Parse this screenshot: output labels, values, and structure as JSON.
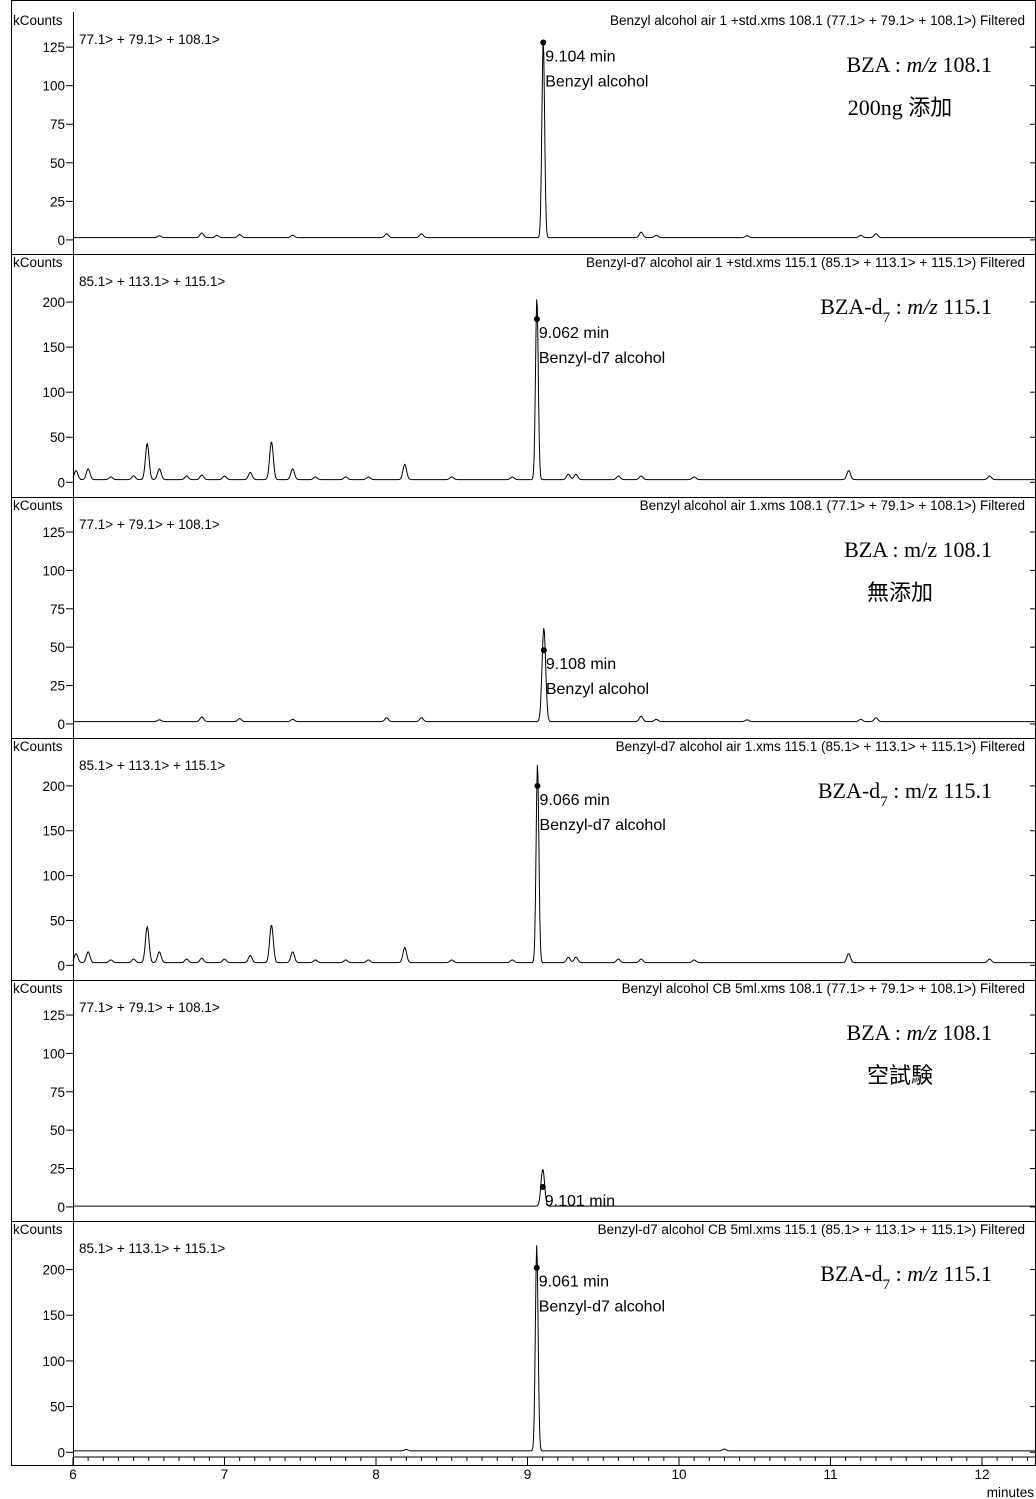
{
  "chart_data": {
    "type": "line",
    "x_unit_label": "minutes",
    "x_ticks": [
      6,
      7,
      8,
      9,
      10,
      11,
      12
    ],
    "xlim": [
      6.0,
      12.35
    ],
    "y_unit_label": "kCounts",
    "line_color": "#000000",
    "panels": [
      {
        "header": "Benzyl alcohol air 1 +std.xms 108.1 (77.1> + 79.1> + 108.1>) Filtered",
        "ions": "77.1> + 79.1> + 108.1>",
        "y_ticks": [
          0,
          25,
          50,
          75,
          100,
          125
        ],
        "ylim": [
          -2,
          140
        ],
        "baseline": 1.5,
        "peaks": [
          [
            6.57,
            1.2
          ],
          [
            6.85,
            3
          ],
          [
            6.95,
            1.5
          ],
          [
            7.1,
            2
          ],
          [
            7.45,
            1.5
          ],
          [
            8.07,
            2.5
          ],
          [
            8.3,
            2.5
          ],
          [
            9.104,
            128
          ],
          [
            9.75,
            3.5
          ],
          [
            9.85,
            1.5
          ],
          [
            10.45,
            1.2
          ],
          [
            11.2,
            1.5
          ],
          [
            11.3,
            2.5
          ]
        ],
        "marker": {
          "rt": 9.104,
          "height": 128
        },
        "peak_labels": [
          "9.104 min",
          "Benzyl alcohol"
        ],
        "annotation": {
          "compound": "BZA",
          "subscript": "",
          "sep": " : ",
          "mz_prefix": "m/z",
          "mz_italic": true,
          "mz_value": " 108.1",
          "note": "200ng 添加"
        }
      },
      {
        "header": "Benzyl-d7 alcohol air 1 +std.xms 115.1 (85.1> + 113.1> + 115.1>) Filtered",
        "ions": "85.1> + 113.1> + 115.1>",
        "y_ticks": [
          0,
          50,
          100,
          150,
          200
        ],
        "ylim": [
          -3,
          240
        ],
        "baseline": 3,
        "peaks": [
          [
            6.02,
            10
          ],
          [
            6.1,
            12
          ],
          [
            6.25,
            3
          ],
          [
            6.4,
            4
          ],
          [
            6.49,
            40
          ],
          [
            6.57,
            12
          ],
          [
            6.75,
            4
          ],
          [
            6.85,
            5
          ],
          [
            7.0,
            4
          ],
          [
            7.17,
            8
          ],
          [
            7.31,
            42
          ],
          [
            7.45,
            12
          ],
          [
            7.6,
            3
          ],
          [
            7.8,
            3
          ],
          [
            7.95,
            3
          ],
          [
            8.19,
            17
          ],
          [
            8.5,
            3
          ],
          [
            8.9,
            3
          ],
          [
            9.062,
            202
          ],
          [
            9.27,
            6
          ],
          [
            9.32,
            6
          ],
          [
            9.6,
            4
          ],
          [
            9.75,
            4
          ],
          [
            10.1,
            3
          ],
          [
            11.12,
            10
          ],
          [
            12.05,
            4
          ]
        ],
        "marker": {
          "rt": 9.062,
          "height": 181
        },
        "peak_labels": [
          "9.062 min",
          "Benzyl-d7 alcohol"
        ],
        "annotation": {
          "compound": "BZA-d",
          "subscript": "7",
          "sep": " : ",
          "mz_prefix": "m/z",
          "mz_italic": true,
          "mz_value": " 115.1",
          "note": ""
        }
      },
      {
        "header": "Benzyl alcohol air 1.xms 108.1 (77.1> + 79.1> + 108.1>) Filtered",
        "ions": "77.1> + 79.1> + 108.1>",
        "y_ticks": [
          0,
          25,
          50,
          75,
          100,
          125
        ],
        "ylim": [
          -2,
          140
        ],
        "baseline": 1.5,
        "peaks": [
          [
            6.57,
            1.2
          ],
          [
            6.85,
            3
          ],
          [
            7.1,
            2
          ],
          [
            7.45,
            1.5
          ],
          [
            8.07,
            2.5
          ],
          [
            8.3,
            2.5
          ],
          [
            9.108,
            61
          ],
          [
            9.75,
            3.5
          ],
          [
            9.85,
            1.5
          ],
          [
            10.45,
            1.2
          ],
          [
            11.2,
            1.5
          ],
          [
            11.3,
            2.5
          ]
        ],
        "marker": {
          "rt": 9.108,
          "height": 48
        },
        "peak_labels": [
          "9.108 min",
          "Benzyl alcohol"
        ],
        "annotation": {
          "compound": "BZA",
          "subscript": "",
          "sep": " : ",
          "mz_prefix": "m/z",
          "mz_italic": false,
          "mz_value": " 108.1",
          "note": "無添加"
        }
      },
      {
        "header": "Benzyl-d7 alcohol air 1.xms 115.1 (85.1> + 113.1> + 115.1>) Filtered",
        "ions": "85.1> + 113.1> + 115.1>",
        "y_ticks": [
          0,
          50,
          100,
          150,
          200
        ],
        "ylim": [
          -3,
          240
        ],
        "baseline": 3,
        "peaks": [
          [
            6.02,
            10
          ],
          [
            6.1,
            12
          ],
          [
            6.25,
            3
          ],
          [
            6.4,
            4
          ],
          [
            6.49,
            40
          ],
          [
            6.57,
            12
          ],
          [
            6.75,
            4
          ],
          [
            6.85,
            5
          ],
          [
            7.0,
            4
          ],
          [
            7.17,
            8
          ],
          [
            7.31,
            42
          ],
          [
            7.45,
            12
          ],
          [
            7.6,
            3
          ],
          [
            7.8,
            3
          ],
          [
            7.95,
            3
          ],
          [
            8.19,
            17
          ],
          [
            8.5,
            3
          ],
          [
            8.9,
            3
          ],
          [
            9.066,
            222
          ],
          [
            9.27,
            6
          ],
          [
            9.32,
            6
          ],
          [
            9.6,
            4
          ],
          [
            9.75,
            4
          ],
          [
            10.1,
            3
          ],
          [
            11.12,
            10
          ],
          [
            12.05,
            4
          ]
        ],
        "marker": {
          "rt": 9.066,
          "height": 200
        },
        "peak_labels": [
          "9.066 min",
          "Benzyl-d7 alcohol"
        ],
        "annotation": {
          "compound": "BZA-d",
          "subscript": "7",
          "sep": " : ",
          "mz_prefix": "m/z",
          "mz_italic": false,
          "mz_value": " 115.1",
          "note": ""
        }
      },
      {
        "header": "Benzyl alcohol CB 5ml.xms 108.1 (77.1> + 79.1> + 108.1>) Filtered",
        "ions": "77.1> + 79.1> + 108.1>",
        "y_ticks": [
          0,
          25,
          50,
          75,
          100,
          125
        ],
        "ylim": [
          -2,
          140
        ],
        "baseline": 0.5,
        "peaks": [
          [
            9.101,
            24
          ]
        ],
        "marker": {
          "rt": 9.101,
          "height": 13
        },
        "peak_labels": [
          "9.101 min"
        ],
        "annotation": {
          "compound": "BZA",
          "subscript": "",
          "sep": " : ",
          "mz_prefix": "m/z",
          "mz_italic": true,
          "mz_value": " 108.1",
          "note": "空試験"
        }
      },
      {
        "header": "Benzyl-d7 alcohol CB 5ml.xms 115.1 (85.1> + 113.1> + 115.1>) Filtered",
        "ions": "85.1> + 113.1> + 115.1>",
        "y_ticks": [
          0,
          50,
          100,
          150,
          200
        ],
        "ylim": [
          -3,
          240
        ],
        "baseline": 1.5,
        "peaks": [
          [
            8.2,
            1.5
          ],
          [
            9.061,
            225
          ],
          [
            10.3,
            2
          ]
        ],
        "marker": {
          "rt": 9.061,
          "height": 202
        },
        "peak_labels": [
          "9.061 min",
          "Benzyl-d7 alcohol"
        ],
        "annotation": {
          "compound": "BZA-d",
          "subscript": "7",
          "sep": " : ",
          "mz_prefix": "m/z",
          "mz_italic": true,
          "mz_value": " 115.1",
          "note": ""
        }
      }
    ]
  }
}
